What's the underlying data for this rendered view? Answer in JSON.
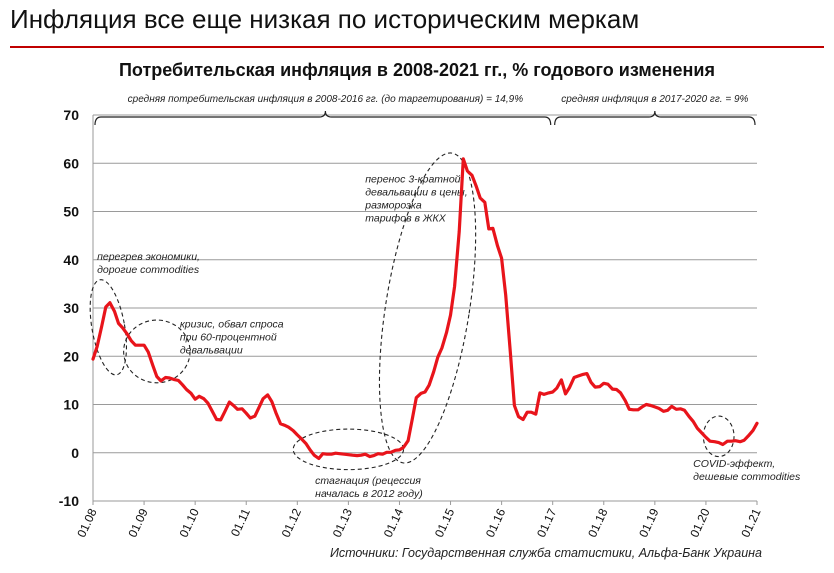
{
  "page": {
    "title": "Инфляция все еще низкая по историческим меркам",
    "accent_color": "#c00000",
    "source": "Источники: Государственная служба статистики, Альфа-Банк Украина"
  },
  "chart_data": {
    "type": "line",
    "title": "Потребительская инфляция в 2008-2021 гг., % годового изменения",
    "xlabel": "",
    "ylabel": "",
    "ylim": [
      -10,
      70
    ],
    "yticks": [
      -10,
      0,
      10,
      20,
      30,
      40,
      50,
      60,
      70
    ],
    "xlim": [
      2008.0,
      2021.0
    ],
    "xtick_labels": [
      "01.08",
      "01.09",
      "01.10",
      "01.11",
      "01.12",
      "01.13",
      "01.14",
      "01.15",
      "01.16",
      "01.17",
      "01.18",
      "01.19",
      "01.20",
      "01.21"
    ],
    "grid": true,
    "line_color": "#e8141b",
    "series": [
      {
        "x": [
          2008.0,
          2008.08,
          2008.17,
          2008.25,
          2008.33,
          2008.42,
          2008.5,
          2008.58,
          2008.67,
          2008.75,
          2008.83,
          2008.92,
          2009.0,
          2009.08,
          2009.17,
          2009.25,
          2009.33,
          2009.42,
          2009.5,
          2009.58,
          2009.67,
          2009.75,
          2009.83,
          2009.92,
          2010.0,
          2010.08,
          2010.17,
          2010.25,
          2010.33,
          2010.42,
          2010.5,
          2010.58,
          2010.67,
          2010.75,
          2010.83,
          2010.92,
          2011.0,
          2011.08,
          2011.17,
          2011.25,
          2011.33,
          2011.42,
          2011.5,
          2011.58,
          2011.67,
          2011.75,
          2011.83,
          2011.92,
          2012.0,
          2012.08,
          2012.17,
          2012.25,
          2012.33,
          2012.42,
          2012.5,
          2012.58,
          2012.67,
          2012.75,
          2012.83,
          2012.92,
          2013.0,
          2013.08,
          2013.17,
          2013.25,
          2013.33,
          2013.42,
          2013.5,
          2013.58,
          2013.67,
          2013.75,
          2013.83,
          2013.92,
          2014.0,
          2014.08,
          2014.17,
          2014.25,
          2014.33,
          2014.42,
          2014.5,
          2014.58,
          2014.67,
          2014.75,
          2014.83,
          2014.92,
          2015.0,
          2015.08,
          2015.17,
          2015.25,
          2015.33,
          2015.42,
          2015.5,
          2015.58,
          2015.67,
          2015.75,
          2015.83,
          2015.92,
          2016.0,
          2016.08,
          2016.17,
          2016.25,
          2016.33,
          2016.42,
          2016.5,
          2016.58,
          2016.67,
          2016.75,
          2016.83,
          2016.92,
          2017.0,
          2017.08,
          2017.17,
          2017.25,
          2017.33,
          2017.42,
          2017.5,
          2017.58,
          2017.67,
          2017.75,
          2017.83,
          2017.92,
          2018.0,
          2018.08,
          2018.17,
          2018.25,
          2018.33,
          2018.42,
          2018.5,
          2018.58,
          2018.67,
          2018.75,
          2018.83,
          2018.92,
          2019.0,
          2019.08,
          2019.17,
          2019.25,
          2019.33,
          2019.42,
          2019.5,
          2019.58,
          2019.67,
          2019.75,
          2019.83,
          2019.92,
          2020.0,
          2020.08,
          2020.17,
          2020.25,
          2020.33,
          2020.42,
          2020.5,
          2020.58,
          2020.67,
          2020.75,
          2020.83,
          2020.92,
          2021.0
        ],
        "y": [
          19.4,
          22.0,
          26.2,
          30.2,
          31.1,
          29.3,
          26.8,
          25.9,
          24.6,
          23.2,
          22.3,
          22.3,
          22.3,
          20.9,
          18.1,
          15.8,
          14.9,
          15.6,
          15.5,
          15.2,
          15.0,
          14.1,
          13.1,
          12.3,
          11.1,
          11.7,
          11.2,
          10.3,
          8.7,
          6.9,
          6.8,
          8.5,
          10.5,
          9.8,
          9.0,
          9.1,
          8.2,
          7.2,
          7.6,
          9.4,
          11.2,
          12.0,
          10.6,
          8.3,
          6.0,
          5.7,
          5.3,
          4.6,
          3.7,
          2.9,
          1.9,
          0.6,
          -0.5,
          -1.2,
          -0.2,
          -0.3,
          -0.3,
          -0.1,
          -0.2,
          -0.3,
          -0.4,
          -0.5,
          -0.6,
          -0.5,
          -0.3,
          -0.8,
          -0.6,
          -0.2,
          -0.3,
          0.1,
          0.1,
          0.5,
          0.6,
          1.1,
          2.5,
          6.9,
          11.4,
          12.3,
          12.6,
          14.0,
          16.8,
          19.8,
          21.7,
          24.9,
          28.5,
          34.5,
          45.8,
          60.9,
          58.4,
          57.5,
          55.3,
          52.8,
          51.9,
          46.4,
          46.5,
          42.9,
          40.3,
          32.7,
          20.9,
          9.8,
          7.5,
          6.9,
          8.4,
          8.4,
          8.0,
          12.4,
          12.1,
          12.4,
          12.6,
          13.4,
          15.1,
          12.2,
          13.5,
          15.6,
          15.9,
          16.2,
          16.4,
          14.6,
          13.6,
          13.7,
          14.4,
          14.2,
          13.2,
          13.1,
          12.4,
          10.8,
          9.0,
          8.9,
          8.9,
          9.5,
          10.0,
          9.8,
          9.5,
          9.2,
          8.6,
          8.8,
          9.6,
          9.0,
          9.1,
          8.8,
          7.5,
          6.5,
          5.1,
          4.1,
          3.2,
          2.4,
          2.3,
          2.1,
          1.7,
          2.4,
          2.4,
          2.5,
          2.3,
          2.6,
          3.5,
          4.6,
          6.1
        ]
      }
    ],
    "brace_annotations": [
      {
        "label": "средняя потребительская инфляция в 2008-2016 гг. (до таргетирования) = 14,9%",
        "from": 2008.0,
        "to": 2017.0,
        "label_at": 2012.55
      },
      {
        "label": "средняя инфляция в 2017-2020 гг. = 9%",
        "from": 2017.0,
        "to": 2021.0,
        "label_at": 2019.0
      }
    ],
    "annotations": [
      {
        "text": [
          "перегрев экономики,",
          "дорогие commodities"
        ],
        "ellipse_center": [
          2008.3,
          26.0
        ],
        "ellipse_radius": [
          0.32,
          10.0
        ],
        "text_at": [
          2008.08,
          40.0
        ]
      },
      {
        "text": [
          "кризис, обвал спроса",
          "при 60-процентной",
          "девальвации"
        ],
        "ellipse_center": [
          2009.25,
          21.0
        ],
        "ellipse_radius": [
          0.65,
          6.5
        ],
        "text_at": [
          2009.7,
          26.0
        ]
      },
      {
        "text": [
          "стагнация (рецессия",
          "началась в 2012 году)"
        ],
        "ellipse_center": [
          2013.0,
          0.7
        ],
        "ellipse_radius": [
          1.08,
          4.2
        ],
        "text_at": [
          2012.35,
          -6.5
        ]
      },
      {
        "text": [
          "перенос 3-кратной",
          "девальвации в цены,",
          "разморозка",
          "тарифов в ЖКХ"
        ],
        "ellipse_center": [
          2014.55,
          30.0
        ],
        "ellipse_radius": [
          0.82,
          32.5
        ],
        "text_at": [
          2013.33,
          56.0
        ]
      },
      {
        "text": [
          "COVID-эффект,",
          "дешевые commodities"
        ],
        "ellipse_center": [
          2020.25,
          3.4
        ],
        "ellipse_radius": [
          0.3,
          4.2
        ],
        "text_at": [
          2019.75,
          -3.0
        ]
      }
    ]
  }
}
